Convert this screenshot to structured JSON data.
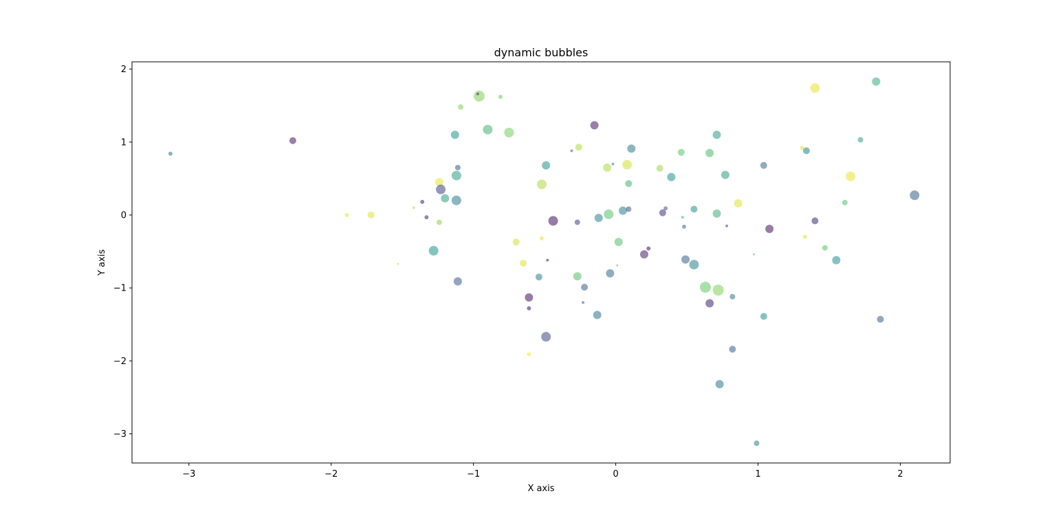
{
  "chart_data": {
    "type": "scatter",
    "title": "dynamic bubbles",
    "xlabel": "X axis",
    "ylabel": "Y axis",
    "xlim": [
      -3.4,
      2.35
    ],
    "ylim": [
      -3.4,
      2.1
    ],
    "xticks": [
      -3,
      -2,
      -1,
      0,
      1,
      2
    ],
    "yticks": [
      -3,
      -2,
      -1,
      0,
      1,
      2
    ],
    "grid": false,
    "legend": "none",
    "colormap": "viridis",
    "alpha": 0.55,
    "points": [
      {
        "x": -3.13,
        "y": 0.84,
        "size": 3,
        "c": 0.38
      },
      {
        "x": -2.27,
        "y": 1.02,
        "size": 5,
        "c": 0.08
      },
      {
        "x": -1.89,
        "y": 0.0,
        "size": 3,
        "c": 0.97
      },
      {
        "x": -1.72,
        "y": 0.0,
        "size": 5,
        "c": 0.95
      },
      {
        "x": -1.53,
        "y": -0.67,
        "size": 1,
        "c": 0.9
      },
      {
        "x": -1.42,
        "y": 0.1,
        "size": 2,
        "c": 0.9
      },
      {
        "x": -1.36,
        "y": 0.18,
        "size": 3,
        "c": 0.1
      },
      {
        "x": -1.33,
        "y": -0.03,
        "size": 3,
        "c": 0.1
      },
      {
        "x": -1.28,
        "y": -0.49,
        "size": 7,
        "c": 0.5
      },
      {
        "x": -1.24,
        "y": 0.45,
        "size": 6,
        "c": 0.97
      },
      {
        "x": -1.24,
        "y": -0.1,
        "size": 4,
        "c": 0.82
      },
      {
        "x": -1.23,
        "y": 0.35,
        "size": 7,
        "c": 0.2
      },
      {
        "x": -1.2,
        "y": 0.23,
        "size": 6,
        "c": 0.55
      },
      {
        "x": -1.13,
        "y": 1.1,
        "size": 6,
        "c": 0.5
      },
      {
        "x": -1.12,
        "y": 0.54,
        "size": 7,
        "c": 0.55
      },
      {
        "x": -1.12,
        "y": 0.2,
        "size": 7,
        "c": 0.4
      },
      {
        "x": -1.11,
        "y": -0.91,
        "size": 6,
        "c": 0.28
      },
      {
        "x": -1.11,
        "y": 0.65,
        "size": 4,
        "c": 0.28
      },
      {
        "x": -1.09,
        "y": 1.48,
        "size": 4,
        "c": 0.8
      },
      {
        "x": -0.96,
        "y": 1.63,
        "size": 8,
        "c": 0.8
      },
      {
        "x": -0.97,
        "y": 1.66,
        "size": 2,
        "c": 0.1
      },
      {
        "x": -0.9,
        "y": 1.17,
        "size": 7,
        "c": 0.65
      },
      {
        "x": -0.81,
        "y": 1.62,
        "size": 3,
        "c": 0.75
      },
      {
        "x": -0.75,
        "y": 1.13,
        "size": 7,
        "c": 0.78
      },
      {
        "x": -0.7,
        "y": -0.37,
        "size": 5,
        "c": 0.93
      },
      {
        "x": -0.65,
        "y": -0.66,
        "size": 5,
        "c": 0.95
      },
      {
        "x": -0.61,
        "y": -1.13,
        "size": 6,
        "c": 0.05
      },
      {
        "x": -0.61,
        "y": -1.28,
        "size": 3,
        "c": 0.05
      },
      {
        "x": -0.61,
        "y": -1.91,
        "size": 3,
        "c": 1.0
      },
      {
        "x": -0.54,
        "y": -0.85,
        "size": 5,
        "c": 0.45
      },
      {
        "x": -0.52,
        "y": 0.42,
        "size": 7,
        "c": 0.88
      },
      {
        "x": -0.52,
        "y": -0.32,
        "size": 3,
        "c": 0.97
      },
      {
        "x": -0.49,
        "y": 0.68,
        "size": 6,
        "c": 0.5
      },
      {
        "x": -0.49,
        "y": -1.67,
        "size": 7,
        "c": 0.22
      },
      {
        "x": -0.48,
        "y": -0.62,
        "size": 2,
        "c": 0.05
      },
      {
        "x": -0.44,
        "y": -0.08,
        "size": 7,
        "c": 0.05
      },
      {
        "x": -0.31,
        "y": 0.88,
        "size": 2,
        "c": 0.3
      },
      {
        "x": -0.27,
        "y": -0.1,
        "size": 4,
        "c": 0.2
      },
      {
        "x": -0.27,
        "y": -0.84,
        "size": 6,
        "c": 0.7
      },
      {
        "x": -0.26,
        "y": 0.93,
        "size": 5,
        "c": 0.88
      },
      {
        "x": -0.23,
        "y": -1.2,
        "size": 2,
        "c": 0.25
      },
      {
        "x": -0.22,
        "y": -0.99,
        "size": 5,
        "c": 0.3
      },
      {
        "x": -0.15,
        "y": 1.23,
        "size": 6,
        "c": 0.07
      },
      {
        "x": -0.13,
        "y": -1.37,
        "size": 6,
        "c": 0.38
      },
      {
        "x": -0.12,
        "y": -0.04,
        "size": 6,
        "c": 0.45
      },
      {
        "x": -0.06,
        "y": 0.65,
        "size": 6,
        "c": 0.88
      },
      {
        "x": -0.05,
        "y": 0.01,
        "size": 7,
        "c": 0.72
      },
      {
        "x": -0.04,
        "y": -0.8,
        "size": 6,
        "c": 0.35
      },
      {
        "x": -0.02,
        "y": 0.7,
        "size": 2,
        "c": 0.45
      },
      {
        "x": 0.01,
        "y": -0.69,
        "size": 1,
        "c": 0.7
      },
      {
        "x": 0.02,
        "y": -0.37,
        "size": 6,
        "c": 0.7
      },
      {
        "x": 0.05,
        "y": 0.06,
        "size": 6,
        "c": 0.42
      },
      {
        "x": 0.08,
        "y": 0.69,
        "size": 7,
        "c": 0.93
      },
      {
        "x": 0.09,
        "y": 0.43,
        "size": 5,
        "c": 0.65
      },
      {
        "x": 0.09,
        "y": 0.08,
        "size": 4,
        "c": 0.25
      },
      {
        "x": 0.11,
        "y": 0.91,
        "size": 6,
        "c": 0.4
      },
      {
        "x": 0.2,
        "y": -0.54,
        "size": 6,
        "c": 0.1
      },
      {
        "x": 0.23,
        "y": -0.46,
        "size": 3,
        "c": 0.05
      },
      {
        "x": 0.31,
        "y": 0.64,
        "size": 5,
        "c": 0.85
      },
      {
        "x": 0.33,
        "y": 0.03,
        "size": 5,
        "c": 0.15
      },
      {
        "x": 0.35,
        "y": 0.09,
        "size": 3,
        "c": 0.25
      },
      {
        "x": 0.39,
        "y": 0.52,
        "size": 6,
        "c": 0.5
      },
      {
        "x": 0.46,
        "y": 0.86,
        "size": 5,
        "c": 0.72
      },
      {
        "x": 0.47,
        "y": -0.03,
        "size": 2,
        "c": 0.65
      },
      {
        "x": 0.48,
        "y": -0.16,
        "size": 3,
        "c": 0.35
      },
      {
        "x": 0.49,
        "y": -0.61,
        "size": 6,
        "c": 0.3
      },
      {
        "x": 0.55,
        "y": 0.08,
        "size": 5,
        "c": 0.5
      },
      {
        "x": 0.55,
        "y": -0.68,
        "size": 7,
        "c": 0.45
      },
      {
        "x": 0.63,
        "y": -0.99,
        "size": 8,
        "c": 0.75
      },
      {
        "x": 0.66,
        "y": -1.21,
        "size": 6,
        "c": 0.1
      },
      {
        "x": 0.66,
        "y": 0.85,
        "size": 6,
        "c": 0.68
      },
      {
        "x": 0.71,
        "y": 0.02,
        "size": 6,
        "c": 0.62
      },
      {
        "x": 0.71,
        "y": 1.1,
        "size": 6,
        "c": 0.55
      },
      {
        "x": 0.72,
        "y": -1.03,
        "size": 8,
        "c": 0.8
      },
      {
        "x": 0.73,
        "y": -2.32,
        "size": 6,
        "c": 0.4
      },
      {
        "x": 0.77,
        "y": 0.55,
        "size": 6,
        "c": 0.55
      },
      {
        "x": 0.78,
        "y": -0.15,
        "size": 2,
        "c": 0.2
      },
      {
        "x": 0.82,
        "y": -1.12,
        "size": 4,
        "c": 0.4
      },
      {
        "x": 0.82,
        "y": -1.84,
        "size": 5,
        "c": 0.3
      },
      {
        "x": 0.86,
        "y": 0.16,
        "size": 6,
        "c": 0.95
      },
      {
        "x": 0.97,
        "y": -0.54,
        "size": 1,
        "c": 0.7
      },
      {
        "x": 0.99,
        "y": -3.13,
        "size": 4,
        "c": 0.45
      },
      {
        "x": 1.04,
        "y": -1.39,
        "size": 5,
        "c": 0.5
      },
      {
        "x": 1.04,
        "y": 0.68,
        "size": 5,
        "c": 0.35
      },
      {
        "x": 1.08,
        "y": -0.19,
        "size": 6,
        "c": 0.05
      },
      {
        "x": 1.31,
        "y": 0.92,
        "size": 3,
        "c": 0.95
      },
      {
        "x": 1.33,
        "y": -0.3,
        "size": 3,
        "c": 0.95
      },
      {
        "x": 1.34,
        "y": 0.88,
        "size": 5,
        "c": 0.45
      },
      {
        "x": 1.4,
        "y": 1.74,
        "size": 7,
        "c": 0.97
      },
      {
        "x": 1.4,
        "y": -0.08,
        "size": 5,
        "c": 0.12
      },
      {
        "x": 1.47,
        "y": -0.45,
        "size": 4,
        "c": 0.72
      },
      {
        "x": 1.55,
        "y": -0.62,
        "size": 6,
        "c": 0.48
      },
      {
        "x": 1.61,
        "y": 0.17,
        "size": 4,
        "c": 0.7
      },
      {
        "x": 1.65,
        "y": 0.53,
        "size": 7,
        "c": 0.97
      },
      {
        "x": 1.72,
        "y": 1.03,
        "size": 4,
        "c": 0.55
      },
      {
        "x": 1.83,
        "y": 1.83,
        "size": 6,
        "c": 0.6
      },
      {
        "x": 1.86,
        "y": -1.43,
        "size": 5,
        "c": 0.3
      },
      {
        "x": 2.1,
        "y": 0.27,
        "size": 7,
        "c": 0.3
      }
    ]
  }
}
